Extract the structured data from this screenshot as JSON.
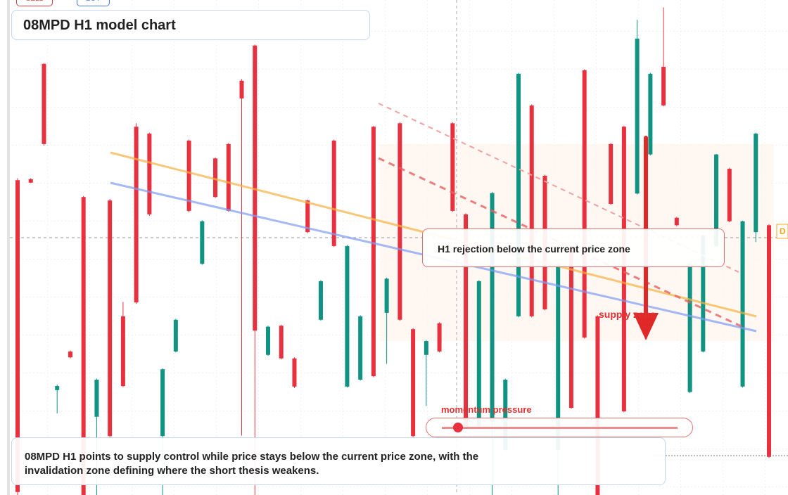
{
  "chart_data": {
    "type": "candlestick",
    "title": "08MPD H1 model chart",
    "buttons": [
      "SELL",
      "BUY"
    ],
    "callout": "H1 rejection below the current price zone",
    "zone_label": "supply zone",
    "momentum_label": "momentum pressure",
    "caption": "08MPD H1 points to supply control while price stays below the current price zone, with the invalidation zone defining where the short thesis weakens.",
    "price_tag": "D",
    "up_color": "#109382",
    "down_color": "#e8313f",
    "ylim": [
      0,
      100
    ],
    "open": [
      63.6,
      63.8,
      87.1,
      21.2,
      29,
      60.2,
      15.8,
      59.5,
      36.1,
      74.4,
      73.0,
      11.9,
      29.0,
      71.6,
      46.7,
      68.0,
      70.9,
      83.7,
      90.8,
      28.3,
      34.2,
      27.6,
      59.5,
      35.4,
      71.6,
      21.9,
      23.3,
      74.4,
      36.8,
      75.1,
      33.5,
      28.3,
      34.7,
      75.1,
      56.7,
      13.4,
      14.8,
      9.1,
      36.1,
      78.7,
      64.5,
      9.1,
      50.3,
      85.8,
      36.1,
      70.9,
      74.4,
      60.9,
      68.8,
      86.5,
      56.0,
      20.8,
      29.0,
      50.3,
      65.9,
      21.9,
      53.1,
      54.5
    ],
    "high": [
      64,
      64,
      87.2,
      22.3,
      29.2,
      60.4,
      23.5,
      59.8,
      39,
      75.1,
      73.2,
      25.6,
      35.6,
      71.8,
      55.5,
      68.2,
      71.1,
      84.0,
      91.0,
      34.2,
      34.4,
      27.8,
      59.7,
      43.4,
      71.8,
      50.5,
      36.3,
      74.6,
      43.9,
      75.3,
      33.7,
      31.3,
      34.9,
      75.3,
      56.9,
      43.4,
      61.2,
      23.5,
      85.3,
      78.9,
      64.7,
      46.9,
      50.5,
      86.0,
      36.3,
      71.1,
      74.6,
      96.0,
      85.3,
      98.5,
      56.2,
      46.9,
      52.6,
      68.9,
      66.1,
      55.4,
      73.2,
      54.7
    ],
    "low": [
      0,
      63,
      70.6,
      16.5,
      27.6,
      0,
      0,
      11.6,
      21.8,
      38.6,
      56.4,
      0,
      28.8,
      57.1,
      46.5,
      60.0,
      57.2,
      12.0,
      0,
      28.1,
      27.4,
      21.6,
      52.9,
      35.2,
      50.1,
      21.7,
      23.1,
      23.8,
      26.5,
      35.2,
      11.7,
      18,
      28.8,
      57.2,
      13.1,
      13.2,
      0,
      8.9,
      35.9,
      35.9,
      37.3,
      0,
      17.4,
      31.6,
      0,
      58.6,
      16.7,
      60.7,
      68.6,
      78.5,
      54.3,
      20.6,
      28.8,
      50.1,
      55.1,
      21.7,
      51.1,
      7.5
    ],
    "close": [
      0.6,
      63.1,
      70.9,
      22.0,
      27.8,
      0,
      23.3,
      11.9,
      22.0,
      38.9,
      56.7,
      25.4,
      35.4,
      57.4,
      55.3,
      60.2,
      57.4,
      80.1,
      33.2,
      34.0,
      27.6,
      21.9,
      53.1,
      43.2,
      50.3,
      50.3,
      36.1,
      24.0,
      43.7,
      35.4,
      11.9,
      31.1,
      29.0,
      57.4,
      13.4,
      43.2,
      61.0,
      23.3,
      85.1,
      36.1,
      37.5,
      46.7,
      17.6,
      31.8,
      0,
      58.8,
      16.9,
      92.2,
      85.1,
      78.7,
      54.5,
      46.7,
      52.4,
      68.8,
      55.3,
      55.3,
      73.0,
      7.7
    ]
  }
}
